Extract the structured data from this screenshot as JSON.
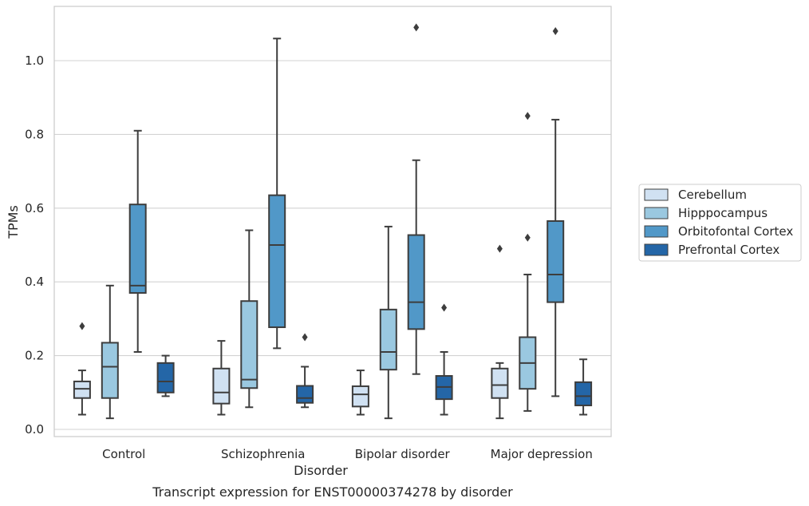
{
  "chart_data": {
    "type": "box",
    "title": "",
    "caption": "Transcript expression for ENST00000374278 by disorder",
    "xlabel": "Disorder",
    "ylabel": "TPMs",
    "ylim": [
      -0.02,
      1.14
    ],
    "yticks": [
      0.0,
      0.2,
      0.4,
      0.6,
      0.8,
      1.0
    ],
    "ytick_labels": [
      "0.0",
      "0.2",
      "0.4",
      "0.6",
      "0.8",
      "1.0"
    ],
    "grid": "horizontal",
    "legend_position": "right",
    "categories": [
      "Control",
      "Schizophrenia",
      "Bipolar disorder",
      "Major depression"
    ],
    "series": [
      {
        "name": "Cerebellum",
        "color": "#d0e1f2",
        "boxes": [
          {
            "whisker_low": 0.04,
            "q1": 0.085,
            "median": 0.11,
            "q3": 0.13,
            "whisker_high": 0.16,
            "outliers": [
              0.28
            ]
          },
          {
            "whisker_low": 0.04,
            "q1": 0.07,
            "median": 0.1,
            "q3": 0.165,
            "whisker_high": 0.24,
            "outliers": []
          },
          {
            "whisker_low": 0.04,
            "q1": 0.062,
            "median": 0.095,
            "q3": 0.117,
            "whisker_high": 0.16,
            "outliers": []
          },
          {
            "whisker_low": 0.03,
            "q1": 0.085,
            "median": 0.12,
            "q3": 0.165,
            "whisker_high": 0.18,
            "outliers": [
              0.49
            ]
          }
        ]
      },
      {
        "name": "Hipppocampus",
        "color": "#9ac8e0",
        "boxes": [
          {
            "whisker_low": 0.03,
            "q1": 0.085,
            "median": 0.17,
            "q3": 0.235,
            "whisker_high": 0.39,
            "outliers": []
          },
          {
            "whisker_low": 0.06,
            "q1": 0.112,
            "median": 0.135,
            "q3": 0.348,
            "whisker_high": 0.54,
            "outliers": []
          },
          {
            "whisker_low": 0.03,
            "q1": 0.162,
            "median": 0.21,
            "q3": 0.325,
            "whisker_high": 0.55,
            "outliers": []
          },
          {
            "whisker_low": 0.05,
            "q1": 0.11,
            "median": 0.18,
            "q3": 0.25,
            "whisker_high": 0.42,
            "outliers": [
              0.52,
              0.85
            ]
          }
        ]
      },
      {
        "name": "Orbitofontal Cortex",
        "color": "#5198c8",
        "boxes": [
          {
            "whisker_low": 0.21,
            "q1": 0.37,
            "median": 0.39,
            "q3": 0.61,
            "whisker_high": 0.81,
            "outliers": []
          },
          {
            "whisker_low": 0.22,
            "q1": 0.277,
            "median": 0.5,
            "q3": 0.635,
            "whisker_high": 1.06,
            "outliers": []
          },
          {
            "whisker_low": 0.15,
            "q1": 0.272,
            "median": 0.345,
            "q3": 0.527,
            "whisker_high": 0.73,
            "outliers": [
              1.09
            ]
          },
          {
            "whisker_low": 0.09,
            "q1": 0.345,
            "median": 0.42,
            "q3": 0.565,
            "whisker_high": 0.84,
            "outliers": [
              1.08
            ]
          }
        ]
      },
      {
        "name": "Prefrontal Cortex",
        "color": "#2466a7",
        "boxes": [
          {
            "whisker_low": 0.09,
            "q1": 0.1,
            "median": 0.13,
            "q3": 0.18,
            "whisker_high": 0.2,
            "outliers": []
          },
          {
            "whisker_low": 0.06,
            "q1": 0.072,
            "median": 0.085,
            "q3": 0.118,
            "whisker_high": 0.17,
            "outliers": [
              0.25
            ]
          },
          {
            "whisker_low": 0.04,
            "q1": 0.082,
            "median": 0.115,
            "q3": 0.145,
            "whisker_high": 0.21,
            "outliers": [
              0.33
            ]
          },
          {
            "whisker_low": 0.04,
            "q1": 0.065,
            "median": 0.09,
            "q3": 0.128,
            "whisker_high": 0.19,
            "outliers": []
          }
        ]
      }
    ]
  }
}
